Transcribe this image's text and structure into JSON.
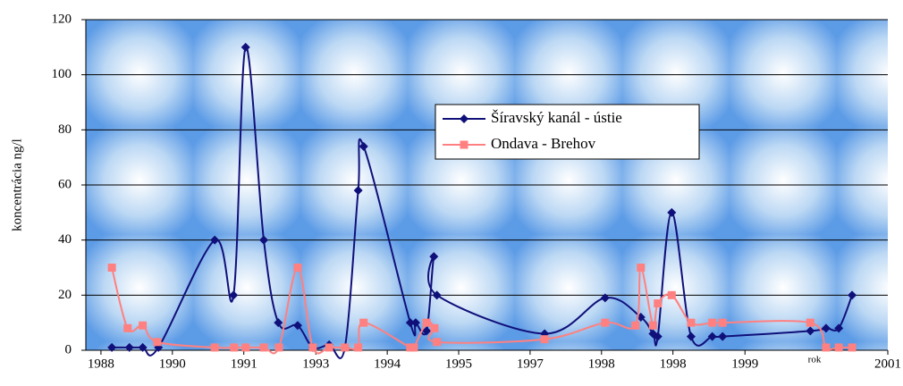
{
  "chart_data": {
    "type": "line",
    "y_label": "koncentrácia ng/l",
    "x_label": "rok",
    "xlim": [
      1987.75,
      2001
    ],
    "xticks": [
      {
        "value": 1988,
        "label": "1988"
      },
      {
        "value": 1989.18,
        "label": "1990"
      },
      {
        "value": 1990.36,
        "label": "1991"
      },
      {
        "value": 1991.55,
        "label": "1993"
      },
      {
        "value": 1992.73,
        "label": "1994"
      },
      {
        "value": 1993.91,
        "label": "1995"
      },
      {
        "value": 1995.09,
        "label": "1997"
      },
      {
        "value": 1996.27,
        "label": "1998"
      },
      {
        "value": 1997.45,
        "label": "1998"
      },
      {
        "value": 1998.64,
        "label": "1999"
      },
      {
        "value": 2001,
        "label": "2001"
      }
    ],
    "ylim": [
      0,
      120
    ],
    "yticks": [
      0,
      20,
      40,
      60,
      80,
      100,
      120
    ],
    "grid": true,
    "legend": "upper right",
    "series": [
      {
        "name": "Šíravský kanál - ústie",
        "color": "#10107a",
        "marker": "diamond",
        "x": [
          1988.18,
          1988.47,
          1988.69,
          1988.95,
          1989.88,
          1990.19,
          1990.39,
          1990.69,
          1990.93,
          1991.25,
          1991.5,
          1991.77,
          1992.03,
          1992.25,
          1992.34,
          1993.11,
          1993.2,
          1993.38,
          1993.5,
          1993.55,
          1995.33,
          1996.33,
          1996.92,
          1997.12,
          1997.2,
          1997.43,
          1997.75,
          1998.1,
          1998.27,
          1999.72,
          1999.98,
          2000.19,
          2000.41
        ],
        "values": [
          1,
          1,
          1,
          1,
          40,
          20,
          110,
          40,
          10,
          9,
          1,
          2,
          1,
          58,
          74,
          10,
          10,
          7,
          34,
          20,
          6,
          19,
          12,
          6,
          5,
          50,
          5,
          5,
          5,
          7,
          8,
          8,
          20
        ]
      },
      {
        "name": "Ondava - Brehov",
        "color": "#ff8080",
        "marker": "square",
        "x": [
          1988.18,
          1988.44,
          1988.69,
          1988.93,
          1989.88,
          1990.2,
          1990.39,
          1990.69,
          1990.94,
          1991.25,
          1991.5,
          1991.77,
          1992.03,
          1992.25,
          1992.34,
          1993.11,
          1993.17,
          1993.38,
          1993.51,
          1993.55,
          1995.33,
          1996.33,
          1996.83,
          1996.92,
          1997.12,
          1997.2,
          1997.43,
          1997.75,
          1998.1,
          1998.27,
          1999.72,
          1999.98,
          2000.19,
          2000.41
        ],
        "values": [
          30,
          8,
          9,
          3,
          1,
          1,
          1,
          1,
          1,
          30,
          1,
          1,
          1,
          1,
          10,
          1,
          1,
          10,
          8,
          3,
          4,
          10,
          9,
          30,
          9,
          17,
          20,
          10,
          10,
          10,
          10,
          1,
          1,
          1
        ]
      }
    ]
  }
}
